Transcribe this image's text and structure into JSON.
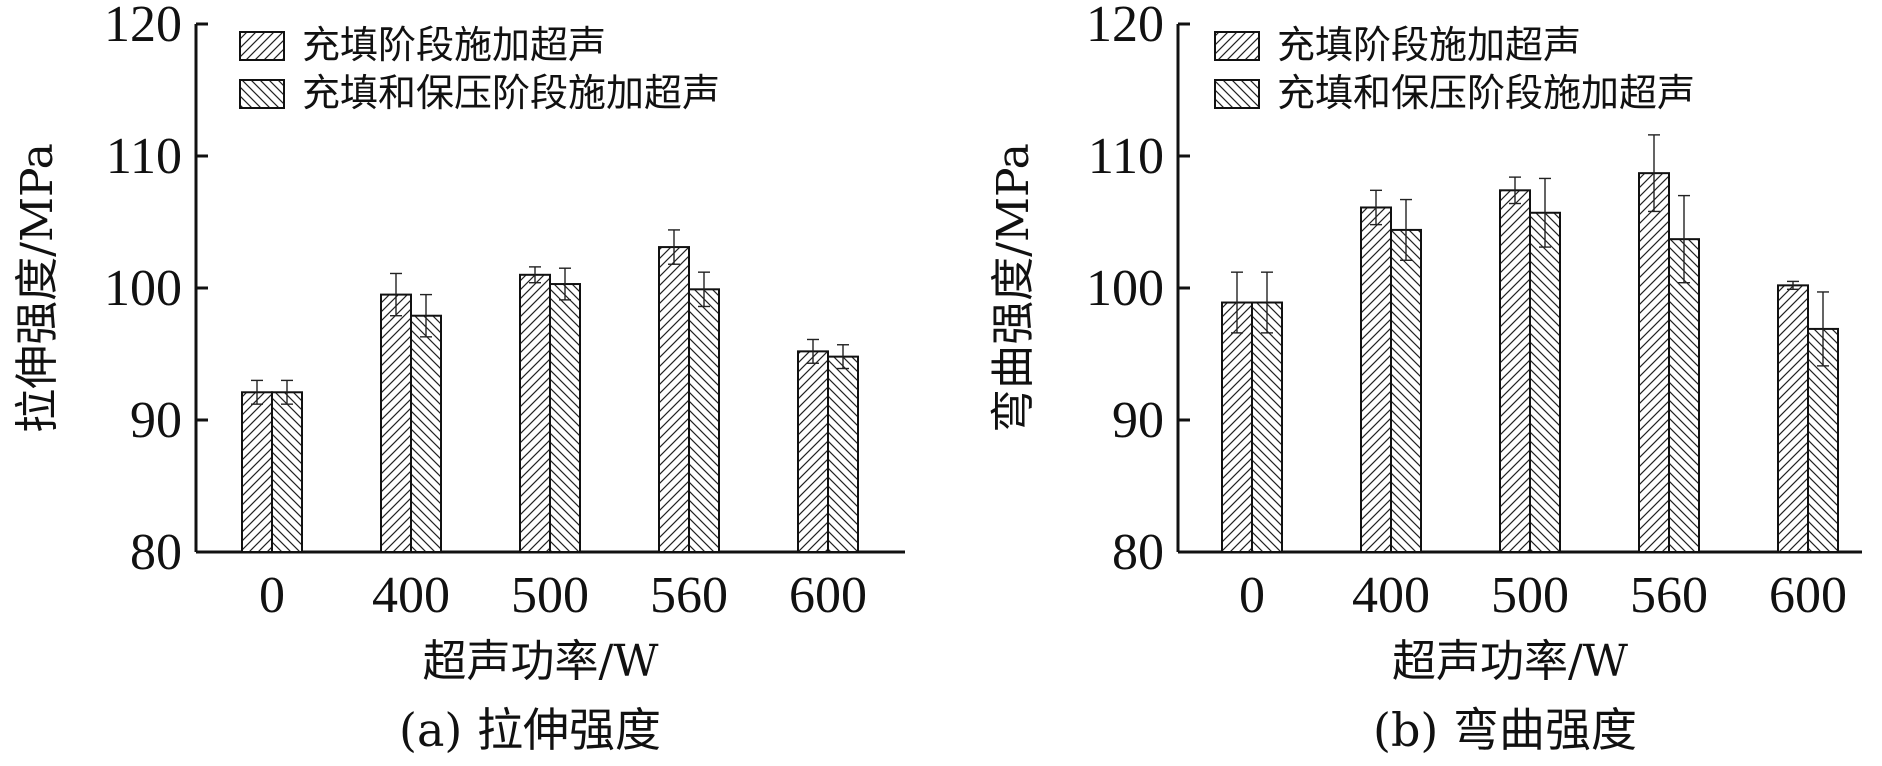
{
  "chart_data": [
    {
      "type": "bar",
      "caption": "(a) 拉伸强度",
      "xlabel": "超声功率/W",
      "ylabel": "拉伸强度/MPa",
      "categories": [
        "0",
        "400",
        "500",
        "560",
        "600"
      ],
      "ylim": [
        80,
        120
      ],
      "yticks": [
        80,
        90,
        100,
        110,
        120
      ],
      "legend_position": "top-left",
      "grid": false,
      "series": [
        {
          "name": "充填阶段施加超声",
          "hatch": "forward",
          "values": [
            92.1,
            99.5,
            101.0,
            103.1,
            95.2
          ],
          "errors": [
            0.9,
            1.6,
            0.6,
            1.3,
            0.9
          ]
        },
        {
          "name": "充填和保压阶段施加超声",
          "hatch": "backward",
          "values": [
            92.1,
            97.9,
            100.3,
            99.9,
            94.8
          ],
          "errors": [
            0.9,
            1.6,
            1.2,
            1.3,
            0.9
          ]
        }
      ]
    },
    {
      "type": "bar",
      "caption": "(b) 弯曲强度",
      "xlabel": "超声功率/W",
      "ylabel": "弯曲强度/MPa",
      "categories": [
        "0",
        "400",
        "500",
        "560",
        "600"
      ],
      "ylim": [
        80,
        120
      ],
      "yticks": [
        80,
        90,
        100,
        110,
        120
      ],
      "legend_position": "top-left",
      "grid": false,
      "series": [
        {
          "name": "充填阶段施加超声",
          "hatch": "forward",
          "values": [
            98.9,
            106.1,
            107.4,
            108.7,
            100.2
          ],
          "errors": [
            2.3,
            1.3,
            1.0,
            2.9,
            0.3
          ]
        },
        {
          "name": "充填和保压阶段施加超声",
          "hatch": "backward",
          "values": [
            98.9,
            104.4,
            105.7,
            103.7,
            96.9
          ],
          "errors": [
            2.3,
            2.3,
            2.6,
            3.3,
            2.8
          ]
        }
      ]
    }
  ]
}
